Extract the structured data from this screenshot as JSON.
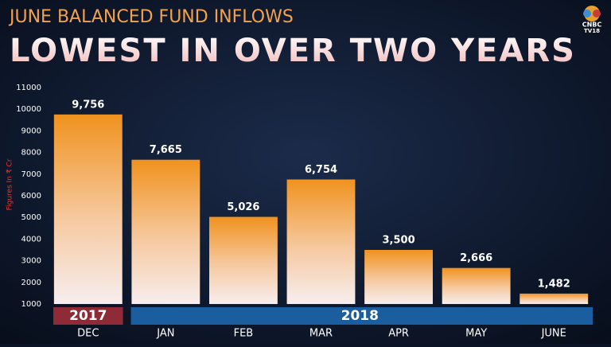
{
  "chart_data": {
    "type": "bar",
    "title": "JUNE BALANCED FUND INFLOWS",
    "subtitle": "LOWEST IN OVER TWO YEARS",
    "y_label": "Figures In ₹ Cr",
    "logo": [
      "CNBC",
      "TV18"
    ],
    "year_labels": [
      "2017",
      "2018"
    ],
    "categories": [
      "DEC",
      "JAN",
      "FEB",
      "MAR",
      "APR",
      "MAY",
      "JUNE"
    ],
    "values": [
      9756,
      7665,
      5026,
      6754,
      3500,
      2666,
      1482
    ],
    "value_labels": [
      "9,756",
      "7,665",
      "5,026",
      "6,754",
      "3,500",
      "2,666",
      "1,482"
    ],
    "color": "#f0921e",
    "ylim": [
      1000,
      11000
    ],
    "yticks": [
      1000,
      2000,
      3000,
      4000,
      5000,
      6000,
      7000,
      8000,
      9000,
      10000,
      11000
    ],
    "grid": false
  }
}
